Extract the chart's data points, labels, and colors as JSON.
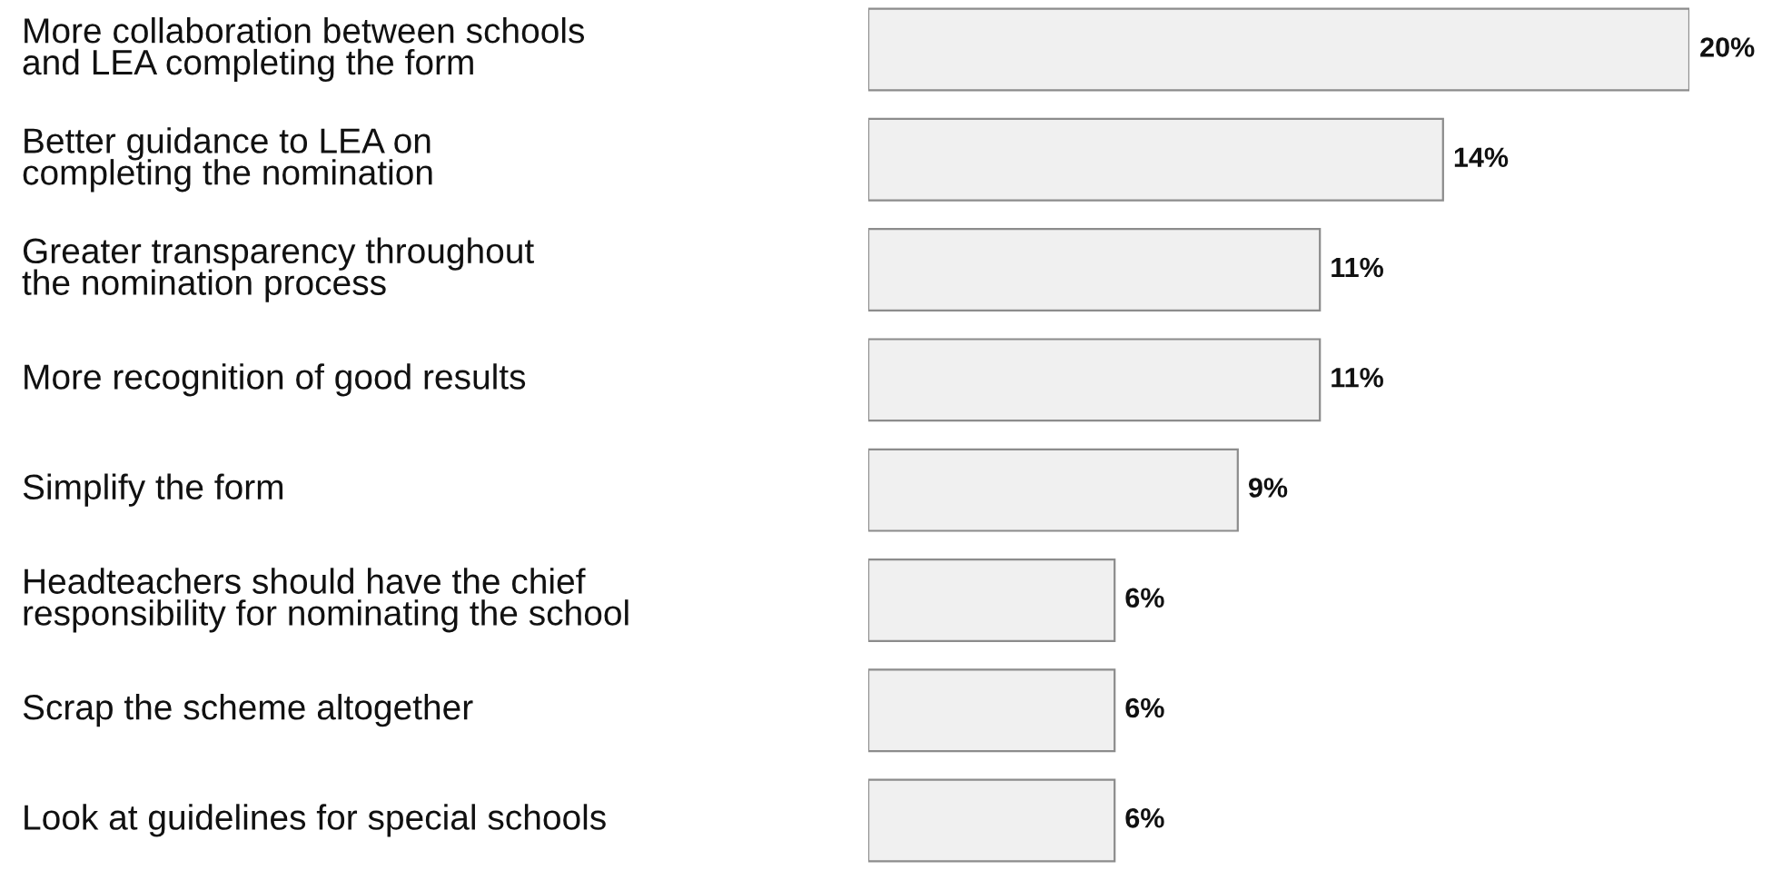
{
  "chart_data": {
    "type": "bar",
    "orientation": "horizontal",
    "categories": [
      "More collaboration between schools\nand LEA completing the form",
      "Better guidance to LEA on\ncompleting the nomination",
      "Greater transparency throughout\nthe nomination process",
      "More recognition of good results",
      "Simplify the form",
      "Headteachers should have the chief\nresponsibility for nominating the school",
      "Scrap the scheme altogether",
      "Look at guidelines for special schools"
    ],
    "values": [
      20,
      14,
      11,
      11,
      9,
      6,
      6,
      6
    ],
    "color": "#f0f0f0",
    "value_labels": [
      "20%",
      "14%",
      "11%",
      "11%",
      "9%",
      "6%",
      "6%",
      "6%"
    ]
  }
}
